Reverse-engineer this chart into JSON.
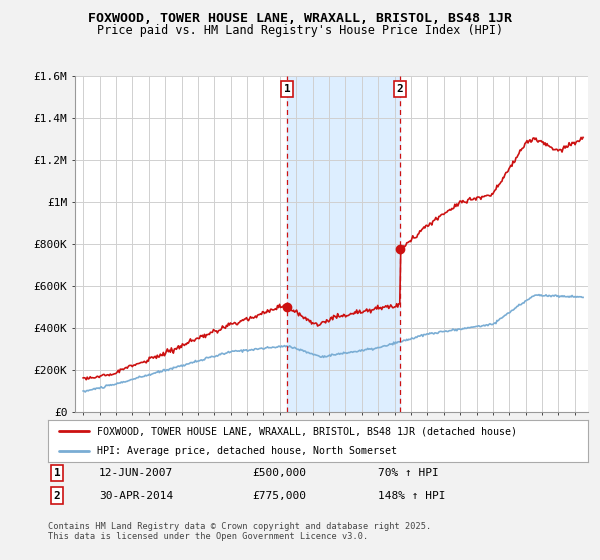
{
  "title": "FOXWOOD, TOWER HOUSE LANE, WRAXALL, BRISTOL, BS48 1JR",
  "subtitle": "Price paid vs. HM Land Registry's House Price Index (HPI)",
  "background_color": "#f2f2f2",
  "plot_bg_color": "#ffffff",
  "legend_label_red": "FOXWOOD, TOWER HOUSE LANE, WRAXALL, BRISTOL, BS48 1JR (detached house)",
  "legend_label_blue": "HPI: Average price, detached house, North Somerset",
  "footer": "Contains HM Land Registry data © Crown copyright and database right 2025.\nThis data is licensed under the Open Government Licence v3.0.",
  "annotation1": {
    "label": "1",
    "date": "12-JUN-2007",
    "price": "£500,000",
    "hpi": "70% ↑ HPI"
  },
  "annotation2": {
    "label": "2",
    "date": "30-APR-2014",
    "price": "£775,000",
    "hpi": "148% ↑ HPI"
  },
  "sale1_x": 2007.44,
  "sale1_y": 500000,
  "sale2_x": 2014.33,
  "sale2_y": 775000,
  "highlight_x1": 2007.44,
  "highlight_x2": 2014.33,
  "ylim": [
    0,
    1600000
  ],
  "xlim": [
    1994.5,
    2025.8
  ],
  "yticks": [
    0,
    200000,
    400000,
    600000,
    800000,
    1000000,
    1200000,
    1400000,
    1600000
  ],
  "ytick_labels": [
    "£0",
    "£200K",
    "£400K",
    "£600K",
    "£800K",
    "£1M",
    "£1.2M",
    "£1.4M",
    "£1.6M"
  ],
  "hpi_color": "#7aadd4",
  "price_color": "#cc1111",
  "shaded_color": "#ddeeff",
  "vline_color": "#cc1111",
  "red_color": "#cc1111",
  "blue_color": "#7aadd4"
}
